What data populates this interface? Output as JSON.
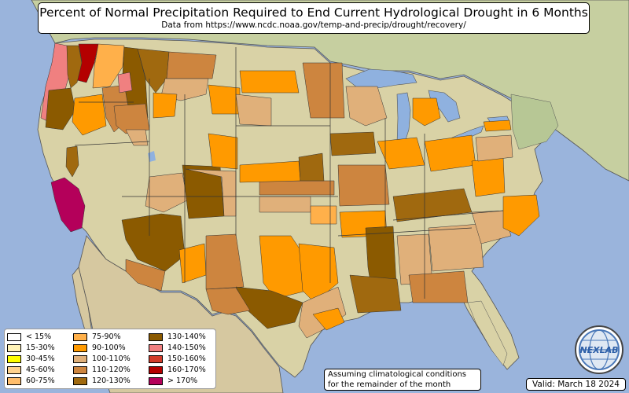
{
  "header": {
    "title": "Percent of Normal Precipitation Required to End Current Hydrological Drought in 6 Months",
    "subtitle": "Data from https://www.ncdc.noaa.gov/temp-and-precip/drought/recovery/"
  },
  "legend": {
    "items": [
      {
        "label": "< 15%",
        "color": "#ffffff"
      },
      {
        "label": "15-30%",
        "color": "#fff3b8"
      },
      {
        "label": "30-45%",
        "color": "#ffff00"
      },
      {
        "label": "45-60%",
        "color": "#ffd28e"
      },
      {
        "label": "60-75%",
        "color": "#ffbd6b"
      },
      {
        "label": "75-90%",
        "color": "#ffb04a"
      },
      {
        "label": "90-100%",
        "color": "#ff9a00"
      },
      {
        "label": "100-110%",
        "color": "#e0b07a"
      },
      {
        "label": "110-120%",
        "color": "#cd853f"
      },
      {
        "label": "120-130%",
        "color": "#a0690f"
      },
      {
        "label": "130-140%",
        "color": "#8b5a00"
      },
      {
        "label": "140-150%",
        "color": "#f08080"
      },
      {
        "label": "150-160%",
        "color": "#d23c2a"
      },
      {
        "label": "160-170%",
        "color": "#b40000"
      },
      {
        "label": "> 170%",
        "color": "#b4005a"
      }
    ]
  },
  "note": {
    "line1": "Assuming climatological conditions",
    "line2": "for the remainder of the month"
  },
  "valid": "Valid: March 18 2024",
  "logo": {
    "text": "NEXLAB",
    "icon": "globe-logo-icon"
  },
  "colors": {
    "ocean": "#9ab4dc",
    "land_plain": "#d9d2a6",
    "land_mountain": "#c8b98c",
    "land_forest": "#a9bd85",
    "canada": "#c6cfa0",
    "mexico": "#d6c8a0",
    "lakes": "#8fb1df"
  }
}
